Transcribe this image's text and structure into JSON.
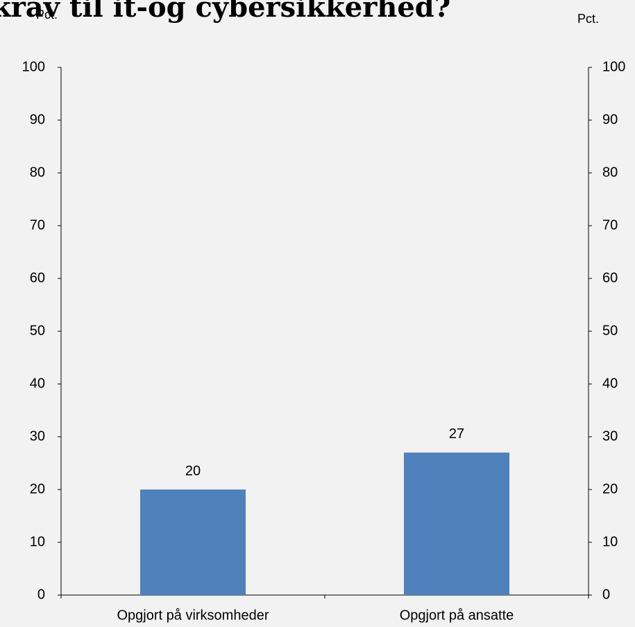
{
  "chart_data": {
    "type": "bar",
    "title": "krav til it-og cybersikkerhed?",
    "y_label": "Pct.",
    "y2_label": "Pct.",
    "categories": [
      "Opgjort på virksomheder",
      "Opgjort på ansatte"
    ],
    "values": [
      20,
      27
    ],
    "color": "#4f81bd",
    "ylim": [
      0,
      100
    ],
    "yticks": [
      0,
      10,
      20,
      30,
      40,
      50,
      60,
      70,
      80,
      90,
      100
    ],
    "y2lim": [
      0,
      100
    ],
    "y2ticks": [
      0,
      10,
      20,
      30,
      40,
      50,
      60,
      70,
      80,
      90,
      100
    ],
    "grid": false
  }
}
